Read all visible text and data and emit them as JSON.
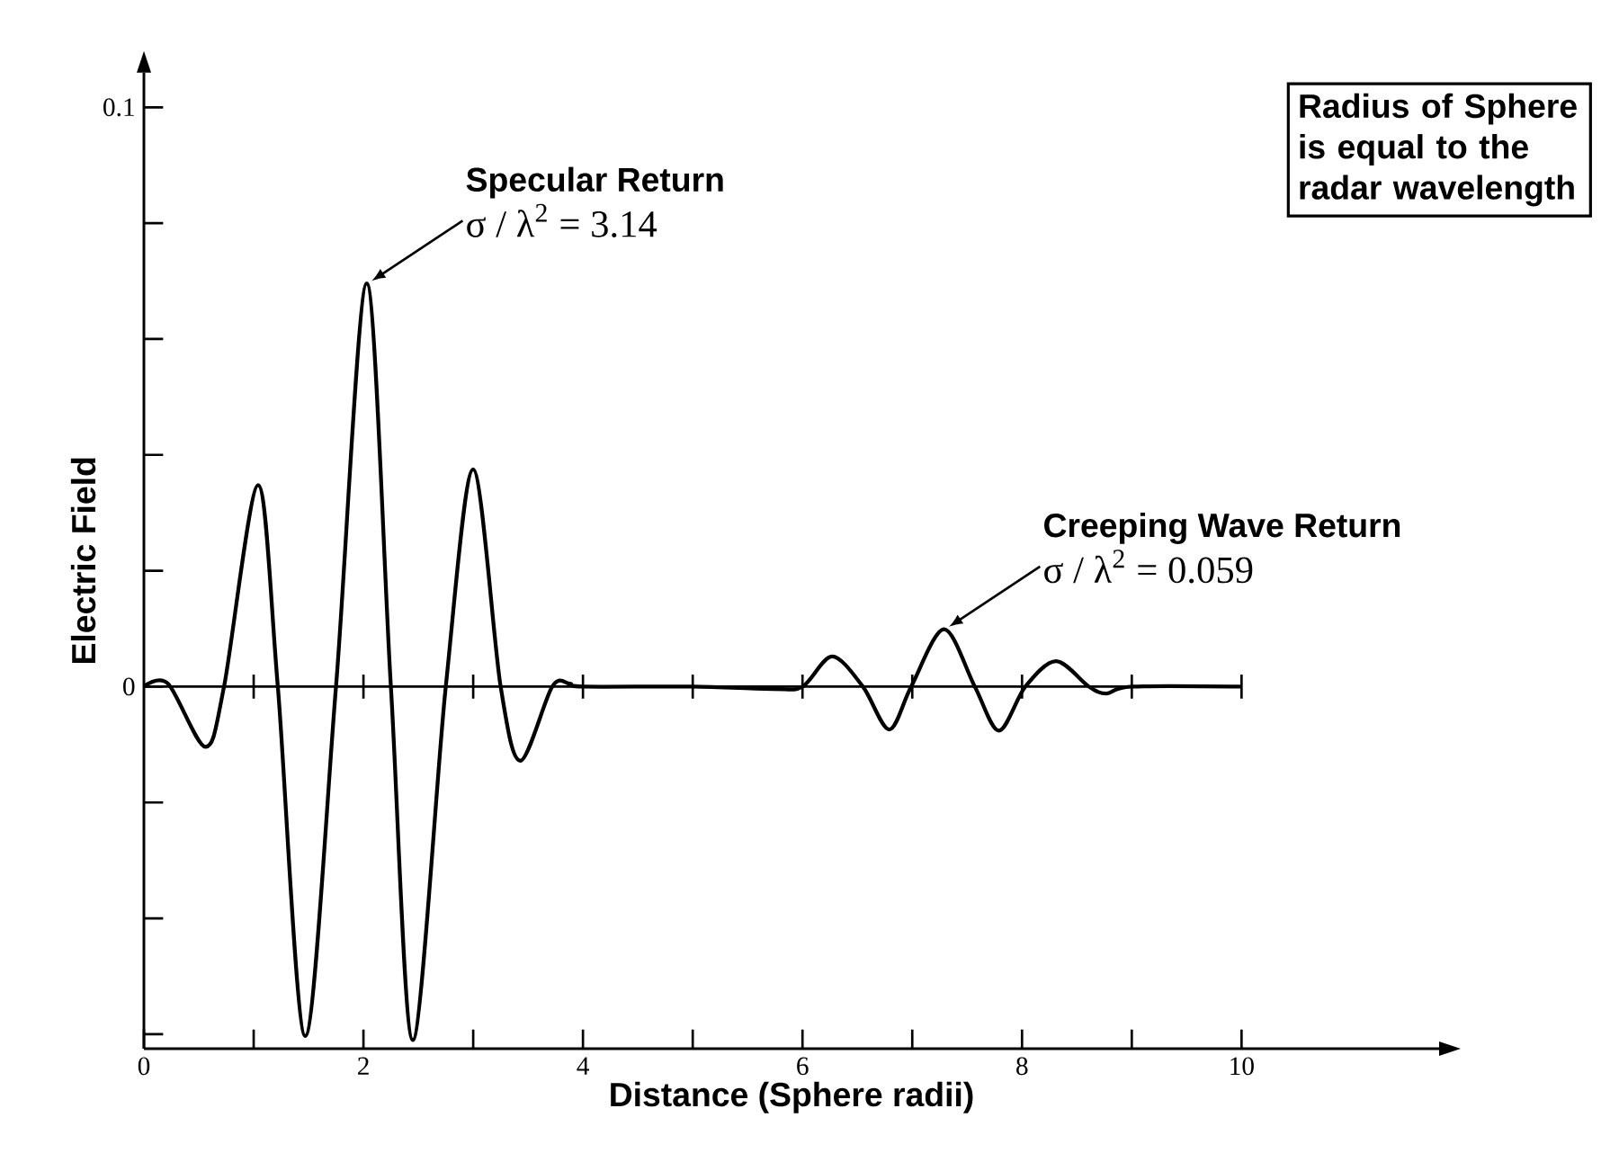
{
  "chart_data": {
    "type": "line",
    "xlabel": "Distance (Sphere radii)",
    "ylabel": "Electric Field",
    "x": [
      0,
      0.22,
      0.56,
      0.73,
      1.04,
      1.22,
      1.47,
      1.75,
      2.03,
      2.25,
      2.45,
      2.75,
      3.0,
      3.25,
      3.43,
      3.72,
      3.88,
      4.0,
      5.0,
      5.73,
      6.0,
      6.27,
      6.55,
      6.79,
      6.99,
      7.29,
      7.57,
      7.79,
      8.03,
      8.31,
      8.61,
      8.77,
      9.0,
      10.0
    ],
    "series": [
      {
        "color": "#000000",
        "line_style": "solid",
        "values": [
          0,
          0.0005,
          -0.0104,
          0,
          0.0348,
          0,
          -0.0603,
          0,
          0.0696,
          0,
          -0.061,
          0,
          0.0375,
          0,
          -0.0128,
          0,
          0.0005,
          0,
          0,
          -0.0004,
          0,
          0.0052,
          0,
          -0.0074,
          0,
          0.0099,
          0,
          -0.0076,
          0,
          0.0044,
          0,
          -0.0012,
          0,
          0
        ]
      }
    ],
    "xlim": [
      0,
      11.8
    ],
    "xticks": [
      0,
      {
        "value": 1,
        "label": null
      },
      2,
      {
        "value": 3,
        "label": null
      },
      4,
      {
        "value": 5,
        "label": null
      },
      6,
      {
        "value": 7,
        "label": null
      },
      8,
      {
        "value": 9,
        "label": null
      },
      10
    ],
    "ylim": [
      -0.0625,
      0.106
    ],
    "yticks": [
      {
        "value": -0.06,
        "label": null
      },
      {
        "value": -0.04,
        "label": null
      },
      {
        "value": -0.02,
        "label": null
      },
      0,
      {
        "value": 0.02,
        "label": null
      },
      {
        "value": 0.04,
        "label": null
      },
      {
        "value": 0.06,
        "label": null
      },
      {
        "value": 0.08,
        "label": null
      },
      0.1
    ],
    "ref_lines": [
      {
        "axis": "y",
        "value": 0
      }
    ],
    "annotations": [
      "Specular Return",
      {
        "text": "σ / λ$^{2}$ = 3.14",
        "x": 2.03,
        "y": 0.0696
      },
      "Creeping Wave Return",
      {
        "text": "σ / λ$^{2}$ = 0.059",
        "x": 7.29,
        "y": 0.0099
      },
      "Radius of Sphere is equal to the radar wavelength"
    ]
  }
}
